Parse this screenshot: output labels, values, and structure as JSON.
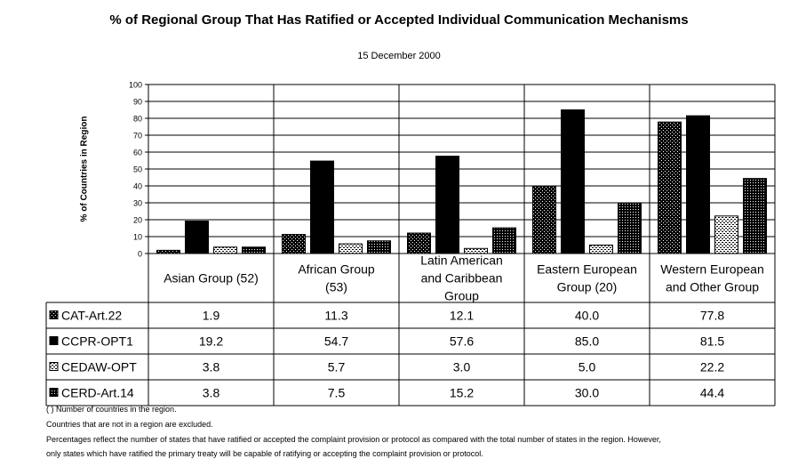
{
  "chart_data": {
    "type": "bar",
    "title": "% of Regional Group That Has Ratified or Accepted Individual Communication Mechanisms",
    "subtitle": "15 December 2000",
    "ylabel": "% of Countries in Region",
    "xlabel": "",
    "ylim": [
      0,
      100
    ],
    "yticks": [
      0,
      10,
      20,
      30,
      40,
      50,
      60,
      70,
      80,
      90,
      100
    ],
    "grid": true,
    "legend": "table-left",
    "categories": [
      "Asian Group (52)",
      "African Group (53)",
      "Latin American and Caribbean Group",
      "Eastern European Group (20)",
      "Western European and Other Group"
    ],
    "series": [
      {
        "name": "CAT-Art.22",
        "values": [
          1.9,
          11.3,
          12.1,
          40.0,
          77.8
        ],
        "labels": [
          "1.9",
          "11.3",
          "12.1",
          "40.0",
          "77.8"
        ]
      },
      {
        "name": "CCPR-OPT1",
        "values": [
          19.2,
          54.7,
          57.6,
          85.0,
          81.5
        ],
        "labels": [
          "19.2",
          "54.7",
          "57.6",
          "85.0",
          "81.5"
        ]
      },
      {
        "name": "CEDAW-OPT",
        "values": [
          3.8,
          5.7,
          3.0,
          5.0,
          22.2
        ],
        "labels": [
          "3.8",
          "5.7",
          "3.0",
          "5.0",
          "22.2"
        ]
      },
      {
        "name": "CERD-Art.14",
        "values": [
          3.8,
          7.5,
          15.2,
          30.0,
          44.4
        ],
        "labels": [
          "3.8",
          "7.5",
          "15.2",
          "30.0",
          "44.4"
        ]
      }
    ]
  },
  "notes": [
    "( ) Number of countries in the region.",
    "Countries that are not in a region are excluded.",
    "Percentages reflect the number of states that have ratified or accepted the complaint provision or protocol as compared with the total number of states in the region. However,",
    "only states which have ratified the primary treaty will be capable of ratifying or accepting the complaint provision or protocol."
  ]
}
